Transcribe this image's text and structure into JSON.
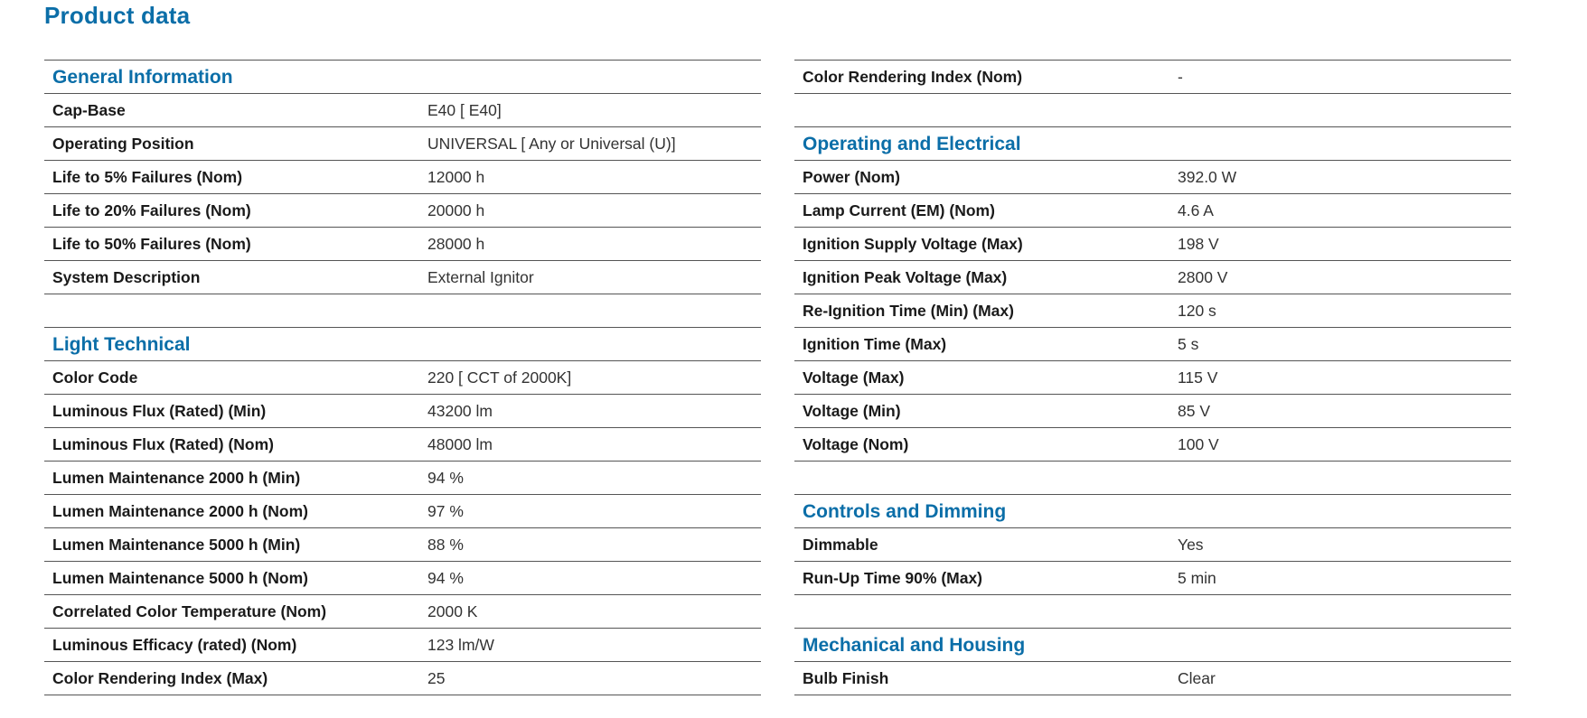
{
  "page": {
    "title": "Product data"
  },
  "left": {
    "general": {
      "heading": "General Information",
      "rows": [
        {
          "label": "Cap-Base",
          "value": "E40 [ E40]"
        },
        {
          "label": "Operating Position",
          "value": "UNIVERSAL [ Any or Universal (U)]"
        },
        {
          "label": "Life to 5% Failures (Nom)",
          "value": "12000 h"
        },
        {
          "label": "Life to 20% Failures (Nom)",
          "value": "20000 h"
        },
        {
          "label": "Life to 50% Failures (Nom)",
          "value": "28000 h"
        },
        {
          "label": "System Description",
          "value": "External Ignitor"
        }
      ]
    },
    "light": {
      "heading": "Light Technical",
      "rows": [
        {
          "label": "Color Code",
          "value": "220 [ CCT of 2000K]"
        },
        {
          "label": "Luminous Flux (Rated) (Min)",
          "value": "43200 lm"
        },
        {
          "label": "Luminous Flux (Rated) (Nom)",
          "value": "48000 lm"
        },
        {
          "label": "Lumen Maintenance 2000 h (Min)",
          "value": "94 %"
        },
        {
          "label": "Lumen Maintenance 2000 h (Nom)",
          "value": "97 %"
        },
        {
          "label": "Lumen Maintenance 5000 h (Min)",
          "value": "88 %"
        },
        {
          "label": "Lumen Maintenance 5000 h (Nom)",
          "value": "94 %"
        },
        {
          "label": "Correlated Color Temperature (Nom)",
          "value": "2000 K"
        },
        {
          "label": "Luminous Efficacy (rated) (Nom)",
          "value": "123 lm/W"
        },
        {
          "label": "Color Rendering Index (Max)",
          "value": "25"
        }
      ]
    }
  },
  "right": {
    "top_rows": [
      {
        "label": "Color Rendering Index (Nom)",
        "value": "-"
      }
    ],
    "electrical": {
      "heading": "Operating and Electrical",
      "rows": [
        {
          "label": "Power (Nom)",
          "value": "392.0 W"
        },
        {
          "label": "Lamp Current (EM) (Nom)",
          "value": "4.6 A"
        },
        {
          "label": "Ignition Supply Voltage (Max)",
          "value": "198 V"
        },
        {
          "label": "Ignition Peak Voltage (Max)",
          "value": "2800 V"
        },
        {
          "label": "Re-Ignition Time (Min) (Max)",
          "value": "120 s"
        },
        {
          "label": "Ignition Time (Max)",
          "value": "5 s"
        },
        {
          "label": "Voltage (Max)",
          "value": "115 V"
        },
        {
          "label": "Voltage (Min)",
          "value": "85 V"
        },
        {
          "label": "Voltage (Nom)",
          "value": "100 V"
        }
      ]
    },
    "controls": {
      "heading": "Controls and Dimming",
      "rows": [
        {
          "label": "Dimmable",
          "value": "Yes"
        },
        {
          "label": "Run-Up Time 90% (Max)",
          "value": "5 min"
        }
      ]
    },
    "mechanical": {
      "heading": "Mechanical and Housing",
      "rows": [
        {
          "label": "Bulb Finish",
          "value": "Clear"
        }
      ]
    }
  },
  "colors": {
    "accent": "#0b6ea8",
    "text": "#1a1a1a",
    "rule": "#555555"
  }
}
